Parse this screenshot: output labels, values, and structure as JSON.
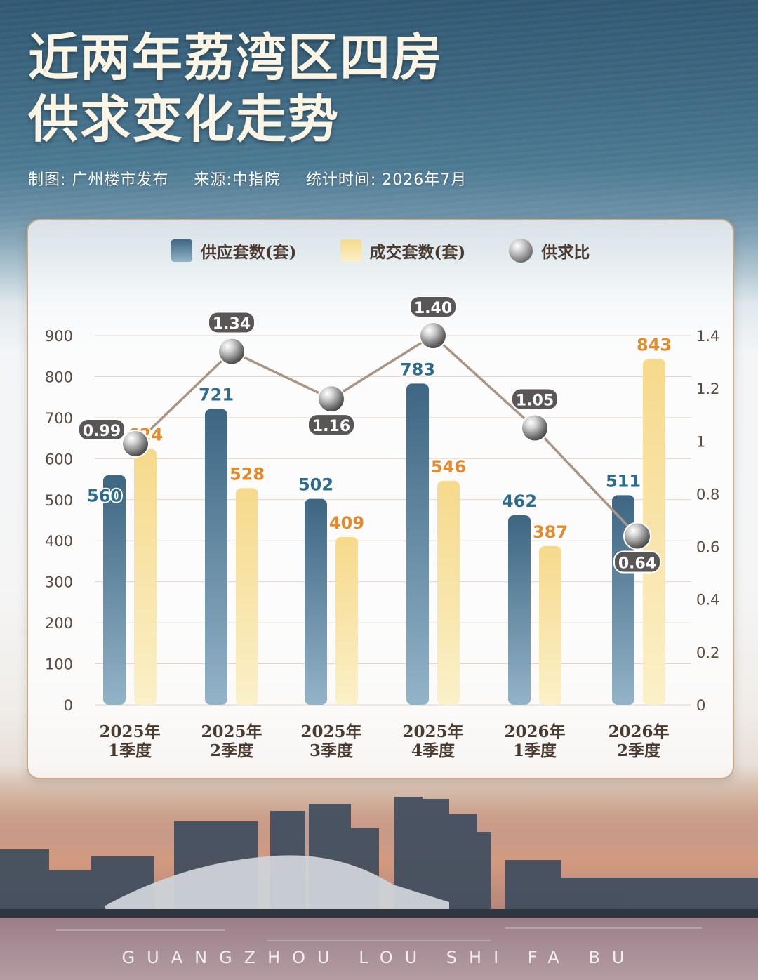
{
  "header": {
    "title_line1": "近两年荔湾区四房",
    "title_line2": "供求变化走势",
    "credit": "制图: 广州楼市发布",
    "source": "来源:中指院",
    "stat_time": "统计时间: 2026年7月"
  },
  "legend": {
    "supply": "供应套数(套)",
    "deal": "成交套数(套)",
    "ratio": "供求比"
  },
  "footer": "GUANGZHOU LOU SHI FA BU",
  "colors": {
    "supply_top": "#3d6683",
    "supply_bottom": "#93b3c7",
    "deal_top": "#f6d98c",
    "deal_bottom": "#fbf0c8",
    "supply_label": "#2d6c8c",
    "deal_label": "#e38a2c",
    "ratio_line": "#a89584",
    "ratio_label_bg": "#5a5656"
  },
  "chart_data": {
    "type": "bar",
    "categories": [
      [
        "2025年",
        "1季度"
      ],
      [
        "2025年",
        "2季度"
      ],
      [
        "2025年",
        "3季度"
      ],
      [
        "2025年",
        "4季度"
      ],
      [
        "2026年",
        "1季度"
      ],
      [
        "2026年",
        "2季度"
      ]
    ],
    "series": [
      {
        "name": "供应套数(套)",
        "type": "bar",
        "axis": "left",
        "values": [
          560,
          721,
          502,
          783,
          462,
          511
        ]
      },
      {
        "name": "成交套数(套)",
        "type": "bar",
        "axis": "left",
        "values": [
          624,
          528,
          409,
          546,
          387,
          843
        ]
      },
      {
        "name": "供求比",
        "type": "line",
        "axis": "right",
        "values": [
          0.99,
          1.34,
          1.16,
          1.4,
          1.05,
          0.64
        ],
        "labels": [
          "0.99",
          "1.34",
          "1.16",
          "1.40",
          "1.05",
          "0.64"
        ]
      }
    ],
    "y_left": {
      "ticks": [
        "0",
        "100",
        "200",
        "300",
        "400",
        "500",
        "600",
        "700",
        "800",
        "900"
      ],
      "ylim": [
        0,
        900
      ]
    },
    "y_right": {
      "ticks": [
        "0",
        "0.2",
        "0.4",
        "0.6",
        "0.8",
        "1",
        "1.2",
        "1.4"
      ],
      "ylim": [
        0,
        1.4
      ]
    },
    "grid": true,
    "legend_position": "top"
  }
}
